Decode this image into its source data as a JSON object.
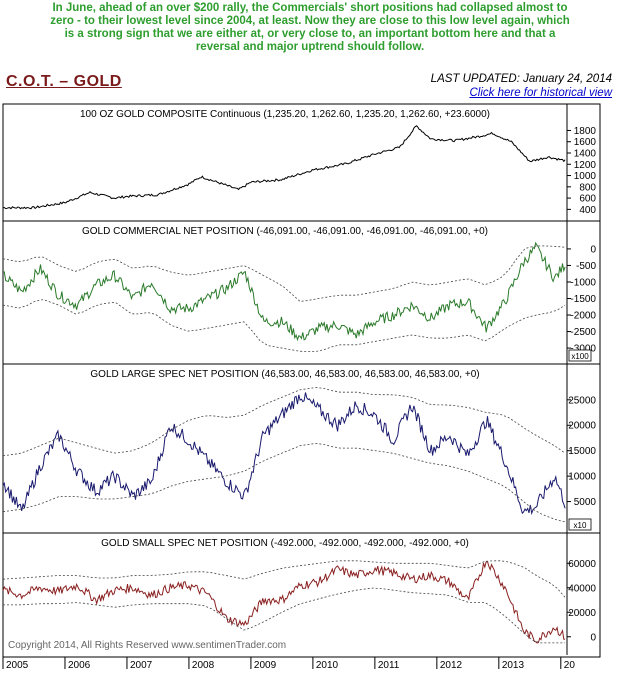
{
  "header": {
    "caption_lines": [
      "In June, ahead of an over $200 rally,  the Commercials' short positions had collapsed almost to",
      "zero - to their lowest level since 2004, at least. Now they are close to this low level again, which",
      "is a strong sign that we are either at, or very close to, an important bottom here and that a",
      "reversal and major uptrend should follow."
    ],
    "title": "C.O.T. – GOLD",
    "last_updated": "LAST UPDATED:  January 24, 2014",
    "history_link": "Click here for historical view"
  },
  "footer": {
    "copyright": "Copyright 2014, All Rights Reserved  www.sentimenTrader.com"
  },
  "colors": {
    "price": "#000000",
    "commercial": "#2a7a2a",
    "large_spec": "#1a1a6e",
    "small_spec": "#8a2020",
    "band": "#444444",
    "caption": "#2e9e2e"
  },
  "chart_data": [
    {
      "type": "line",
      "title": "100 OZ GOLD COMPOSITE Continuous (1,235.20, 1,262.60, 1,235.20, 1,262.60, +23.6000)",
      "ylim": [
        300,
        1950
      ],
      "yticks": [
        400,
        600,
        800,
        1000,
        1200,
        1400,
        1600,
        1800
      ],
      "x": [
        2005.0,
        2005.5,
        2006.0,
        2006.4,
        2006.8,
        2007.0,
        2007.5,
        2008.0,
        2008.2,
        2008.8,
        2009.0,
        2009.5,
        2010.0,
        2010.5,
        2011.0,
        2011.4,
        2011.67,
        2011.9,
        2012.3,
        2012.7,
        2012.9,
        2013.2,
        2013.5,
        2013.8,
        2014.07
      ],
      "series": [
        {
          "values": [
            430,
            430,
            520,
            700,
            600,
            630,
            660,
            850,
            980,
            750,
            880,
            930,
            1100,
            1200,
            1380,
            1500,
            1880,
            1650,
            1620,
            1700,
            1750,
            1600,
            1250,
            1330,
            1262
          ]
        }
      ]
    },
    {
      "type": "line",
      "title": "GOLD COMMERCIAL NET POSITION (-46,091.00, -46,091.00, -46,091.00, -46,091.00, +0)",
      "ylim": [
        -3300,
        300
      ],
      "yticks": [
        -3000,
        -2500,
        -2000,
        -1500,
        -1000,
        -500,
        0
      ],
      "yunit": "x100",
      "x": [
        2005.0,
        2005.3,
        2005.6,
        2005.9,
        2006.2,
        2006.5,
        2006.8,
        2007.1,
        2007.4,
        2007.7,
        2008.0,
        2008.3,
        2008.6,
        2008.9,
        2009.2,
        2009.5,
        2009.8,
        2010.1,
        2010.4,
        2010.7,
        2011.0,
        2011.3,
        2011.6,
        2011.9,
        2012.2,
        2012.5,
        2012.8,
        2013.1,
        2013.4,
        2013.6,
        2013.9,
        2014.07
      ],
      "series": [
        {
          "name": "Net position",
          "values": [
            -800,
            -1300,
            -600,
            -1400,
            -1700,
            -1100,
            -800,
            -1500,
            -1000,
            -1800,
            -1800,
            -1500,
            -1200,
            -700,
            -2200,
            -2200,
            -2700,
            -2400,
            -2300,
            -2600,
            -2200,
            -2000,
            -1700,
            -2100,
            -1700,
            -1600,
            -2400,
            -1600,
            -400,
            50,
            -900,
            -461
          ]
        },
        {
          "name": "Upper band",
          "values": [
            -300,
            -400,
            -200,
            -500,
            -700,
            -400,
            -300,
            -600,
            -500,
            -700,
            -800,
            -700,
            -600,
            -500,
            -800,
            -1100,
            -1600,
            -1500,
            -1400,
            -1400,
            -1300,
            -1200,
            -1000,
            -1100,
            -1000,
            -900,
            -1100,
            -800,
            0,
            100,
            80,
            50
          ]
        },
        {
          "name": "Lower band",
          "values": [
            -1700,
            -1800,
            -1500,
            -1700,
            -2000,
            -1700,
            -1600,
            -2000,
            -1900,
            -2300,
            -2500,
            -2400,
            -2300,
            -2200,
            -2900,
            -3000,
            -3100,
            -3100,
            -2900,
            -2900,
            -2800,
            -2700,
            -2600,
            -2700,
            -2700,
            -2600,
            -2800,
            -2400,
            -2100,
            -2000,
            -1900,
            -1700
          ]
        }
      ]
    },
    {
      "type": "line",
      "title": "GOLD LARGE SPEC NET POSITION (46,583.00, 46,583.00, 46,583.00, 46,583.00, +0)",
      "ylim": [
        0,
        28500
      ],
      "yticks": [
        5000,
        10000,
        15000,
        20000,
        25000
      ],
      "yunit": "x10",
      "x": [
        2005.0,
        2005.3,
        2005.6,
        2005.9,
        2006.2,
        2006.5,
        2006.8,
        2007.1,
        2007.4,
        2007.7,
        2008.0,
        2008.3,
        2008.6,
        2008.9,
        2009.2,
        2009.5,
        2009.8,
        2010.1,
        2010.4,
        2010.7,
        2011.0,
        2011.3,
        2011.6,
        2011.9,
        2012.2,
        2012.5,
        2012.8,
        2013.1,
        2013.4,
        2013.6,
        2013.9,
        2014.07
      ],
      "series": [
        {
          "name": "Net position",
          "values": [
            9000,
            3000,
            12000,
            18000,
            11000,
            7000,
            10000,
            6000,
            9000,
            20000,
            17000,
            13000,
            9000,
            6000,
            18000,
            22000,
            26000,
            23000,
            20000,
            24000,
            22000,
            17000,
            24000,
            15000,
            18000,
            14000,
            21000,
            13000,
            3000,
            4000,
            10000,
            4658
          ]
        },
        {
          "name": "Upper band",
          "values": [
            14000,
            14500,
            16000,
            17500,
            16500,
            15500,
            14500,
            15000,
            16500,
            19000,
            21000,
            22000,
            21500,
            22000,
            24000,
            25500,
            27000,
            27500,
            26500,
            26500,
            26000,
            26000,
            25500,
            24000,
            24000,
            23500,
            22500,
            22000,
            19500,
            18000,
            16000,
            14500
          ]
        },
        {
          "name": "Lower band",
          "values": [
            3000,
            3500,
            4500,
            6000,
            6000,
            5500,
            5500,
            6000,
            6500,
            8000,
            9000,
            9500,
            10000,
            11000,
            13000,
            14500,
            16000,
            16500,
            15500,
            15500,
            15000,
            14500,
            13500,
            12500,
            12000,
            11000,
            9500,
            8000,
            5000,
            3000,
            1500,
            1000
          ]
        }
      ]
    },
    {
      "type": "line",
      "title": "GOLD SMALL SPEC NET POSITION (-492.000, -492.000, -492.000, -492.000, +0)",
      "ylim": [
        -10000,
        70000
      ],
      "yticks": [
        0,
        20000,
        40000,
        60000
      ],
      "x": [
        2005.0,
        2005.3,
        2005.6,
        2005.9,
        2006.2,
        2006.5,
        2006.8,
        2007.1,
        2007.4,
        2007.7,
        2008.0,
        2008.3,
        2008.6,
        2008.9,
        2009.2,
        2009.5,
        2009.8,
        2010.1,
        2010.4,
        2010.7,
        2011.0,
        2011.3,
        2011.6,
        2011.9,
        2012.2,
        2012.5,
        2012.8,
        2013.1,
        2013.4,
        2013.6,
        2013.9,
        2014.07
      ],
      "series": [
        {
          "name": "Net position",
          "values": [
            38000,
            34000,
            40000,
            37000,
            42000,
            30000,
            38000,
            40000,
            34000,
            40000,
            42000,
            35000,
            15000,
            10000,
            30000,
            30000,
            42000,
            45000,
            55000,
            50000,
            55000,
            52000,
            47000,
            50000,
            45000,
            30000,
            63000,
            40000,
            5000,
            -3000,
            8000,
            -492
          ]
        },
        {
          "name": "Upper band",
          "values": [
            47000,
            48000,
            49000,
            50000,
            50000,
            48000,
            48000,
            50000,
            50000,
            51000,
            53000,
            53000,
            50000,
            47000,
            52000,
            56000,
            58000,
            60000,
            62000,
            62000,
            61000,
            60000,
            60000,
            60000,
            58000,
            56000,
            62000,
            62000,
            57000,
            50000,
            42000,
            32000
          ]
        },
        {
          "name": "Lower band",
          "values": [
            26000,
            26000,
            27000,
            27000,
            28000,
            26000,
            24000,
            26000,
            27000,
            27000,
            27000,
            25000,
            15000,
            5000,
            12000,
            20000,
            27000,
            31000,
            35000,
            38000,
            40000,
            38000,
            36000,
            35000,
            34000,
            28000,
            28000,
            17000,
            3000,
            -5000,
            -5000,
            -5000
          ]
        }
      ]
    }
  ],
  "xaxis": {
    "labels": [
      "2005",
      "2006",
      "2007",
      "2008",
      "2009",
      "2010",
      "2011",
      "2012",
      "2013",
      "20"
    ]
  }
}
